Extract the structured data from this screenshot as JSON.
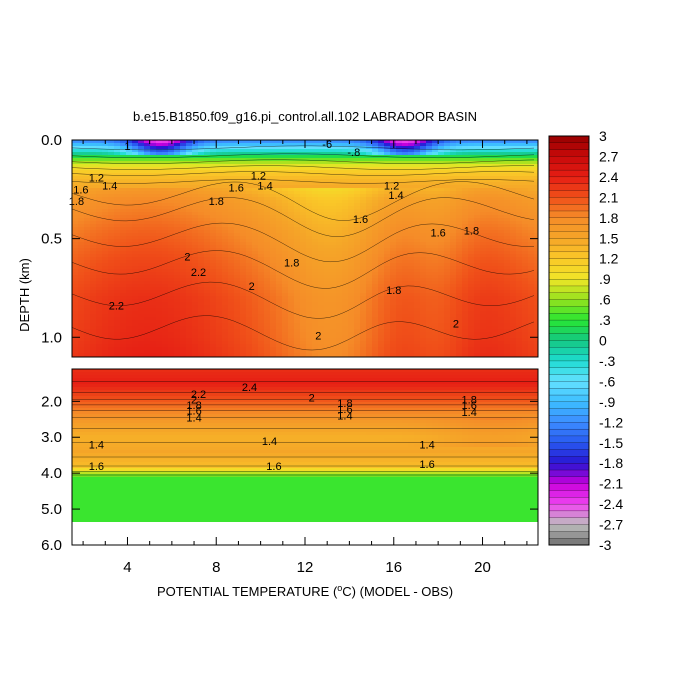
{
  "chart_data": {
    "type": "heatmap",
    "title": "b.e15.B1850.f09_g16.pi_control.all.102 LABRADOR BASIN",
    "xlabel_main": "POTENTIAL TEMPERATURE (",
    "xlabel_unit": "C) (MODEL - OBS)",
    "xlabel_degree": "o",
    "ylabel": "DEPTH (km)",
    "x_tick_labels": [
      "4",
      "8",
      "12",
      "16",
      "20"
    ],
    "x_ticks": [
      4,
      8,
      12,
      16,
      20
    ],
    "xlim": [
      1.5,
      22.5
    ],
    "upper_panel": {
      "ylim": [
        0.0,
        1.1
      ],
      "y_ticks": [
        0.0,
        0.5,
        1.0
      ],
      "y_tick_labels": [
        "0.0",
        "0.5",
        "1.0"
      ]
    },
    "lower_panel": {
      "ylim": [
        1.1,
        6.0
      ],
      "y_ticks": [
        2.0,
        3.0,
        4.0,
        5.0,
        6.0
      ],
      "y_tick_labels": [
        "2.0",
        "3.0",
        "4.0",
        "5.0",
        "6.0"
      ]
    },
    "colorbar": {
      "min": -3.0,
      "max": 3.0,
      "step": 0.1,
      "tick_labels": [
        "3",
        "2.7",
        "2.4",
        "2.1",
        "1.8",
        "1.5",
        "1.2",
        ".9",
        ".6",
        ".3",
        "0",
        "-.3",
        "-.6",
        "-.9",
        "-1.2",
        "-1.5",
        "-1.8",
        "-2.1",
        "-2.4",
        "-2.7",
        "-3"
      ]
    },
    "profile_depth": [
      0.0,
      0.05,
      0.1,
      0.15,
      0.2,
      0.3,
      0.45,
      0.6,
      0.8,
      1.0,
      1.1
    ],
    "profile_value": [
      -1.3,
      -0.4,
      0.5,
      1.1,
      1.35,
      1.65,
      1.85,
      2.0,
      2.15,
      2.2,
      2.25
    ],
    "deep_profile_depth": [
      1.1,
      1.5,
      1.8,
      2.2,
      2.6,
      3.0,
      3.4,
      3.8,
      4.05
    ],
    "deep_profile_value": [
      2.3,
      2.4,
      2.2,
      1.9,
      1.6,
      1.4,
      1.5,
      1.3,
      0.5
    ],
    "contour_labels_upper": [
      {
        "text": "1",
        "x": 4.0,
        "depth": 0.03
      },
      {
        "text": "-6",
        "x": 13.0,
        "depth": 0.02
      },
      {
        "text": "-.8",
        "x": 14.2,
        "depth": 0.06
      },
      {
        "text": "1.2",
        "x": 2.6,
        "depth": 0.19
      },
      {
        "text": "1.4",
        "x": 3.2,
        "depth": 0.23
      },
      {
        "text": "1.6",
        "x": 1.9,
        "depth": 0.25
      },
      {
        "text": "1.8",
        "x": 1.7,
        "depth": 0.31
      },
      {
        "text": "1.2",
        "x": 9.9,
        "depth": 0.18
      },
      {
        "text": "1.4",
        "x": 10.2,
        "depth": 0.23
      },
      {
        "text": "1.6",
        "x": 8.9,
        "depth": 0.24
      },
      {
        "text": "1.8",
        "x": 8.0,
        "depth": 0.31
      },
      {
        "text": "1.2",
        "x": 15.9,
        "depth": 0.23
      },
      {
        "text": "1.4",
        "x": 16.1,
        "depth": 0.28
      },
      {
        "text": "1.6",
        "x": 14.5,
        "depth": 0.4
      },
      {
        "text": "1.6",
        "x": 18.0,
        "depth": 0.47
      },
      {
        "text": "1.8",
        "x": 19.5,
        "depth": 0.46
      },
      {
        "text": "1.8",
        "x": 11.4,
        "depth": 0.62
      },
      {
        "text": "1.8",
        "x": 16.0,
        "depth": 0.76
      },
      {
        "text": "2",
        "x": 6.7,
        "depth": 0.59
      },
      {
        "text": "2.2",
        "x": 7.2,
        "depth": 0.67
      },
      {
        "text": "2",
        "x": 9.6,
        "depth": 0.74
      },
      {
        "text": "2.2",
        "x": 3.5,
        "depth": 0.84
      },
      {
        "text": "2",
        "x": 12.6,
        "depth": 0.99
      },
      {
        "text": "2",
        "x": 18.8,
        "depth": 0.93
      }
    ],
    "contour_labels_lower": [
      {
        "text": "2.4",
        "x": 9.5,
        "depth": 1.6
      },
      {
        "text": "2.2",
        "x": 7.2,
        "depth": 1.8
      },
      {
        "text": "2",
        "x": 7.0,
        "depth": 1.95
      },
      {
        "text": "1.8",
        "x": 7.0,
        "depth": 2.1
      },
      {
        "text": "1.6",
        "x": 7.0,
        "depth": 2.25
      },
      {
        "text": "1.4",
        "x": 7.0,
        "depth": 2.45
      },
      {
        "text": "2",
        "x": 12.3,
        "depth": 1.9
      },
      {
        "text": "1.8",
        "x": 13.8,
        "depth": 2.05
      },
      {
        "text": "1.6",
        "x": 13.8,
        "depth": 2.22
      },
      {
        "text": "1.4",
        "x": 13.8,
        "depth": 2.4
      },
      {
        "text": "1.8",
        "x": 19.4,
        "depth": 1.95
      },
      {
        "text": "1.6",
        "x": 19.4,
        "depth": 2.1
      },
      {
        "text": "1.4",
        "x": 19.4,
        "depth": 2.3
      },
      {
        "text": "1.4",
        "x": 2.6,
        "depth": 3.2
      },
      {
        "text": "1.4",
        "x": 10.4,
        "depth": 3.1
      },
      {
        "text": "1.4",
        "x": 17.5,
        "depth": 3.2
      },
      {
        "text": "1.6",
        "x": 2.6,
        "depth": 3.8
      },
      {
        "text": "1.6",
        "x": 10.6,
        "depth": 3.8
      },
      {
        "text": "1.6",
        "x": 17.5,
        "depth": 3.75
      }
    ],
    "grid": false
  }
}
